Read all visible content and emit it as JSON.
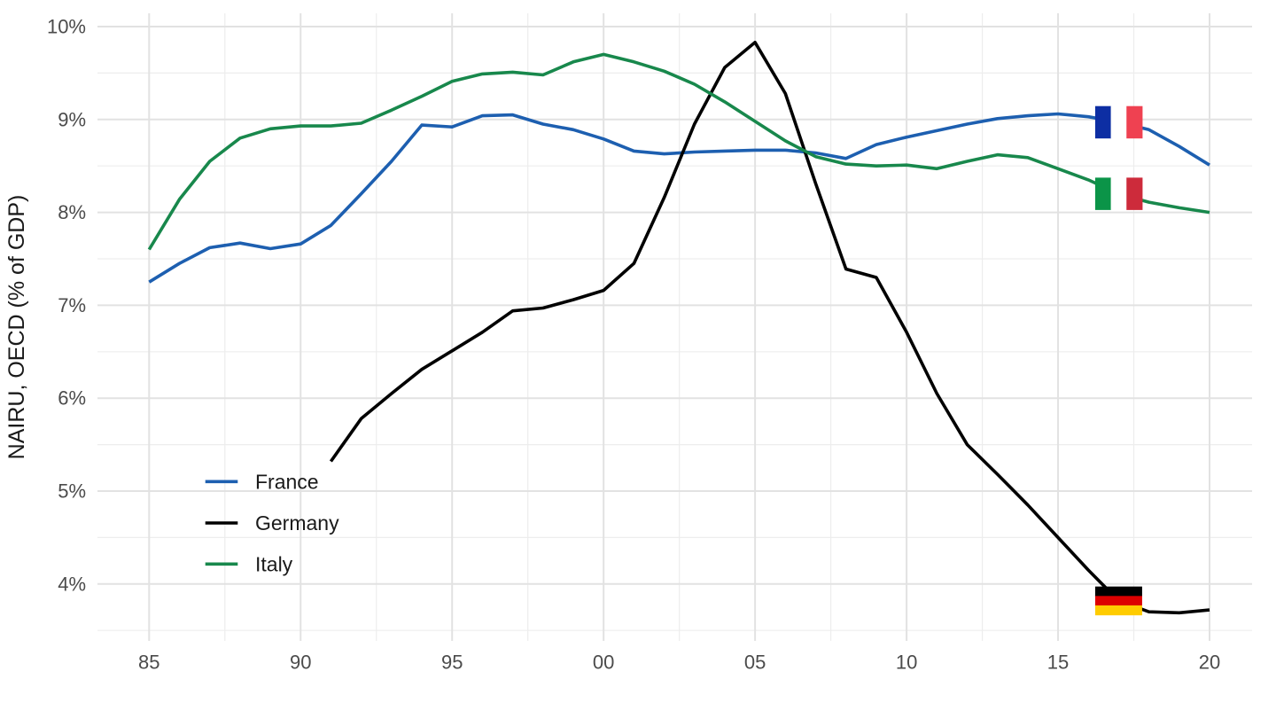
{
  "chart_data": {
    "type": "line",
    "title": "",
    "xlabel": "",
    "ylabel": "NAIRU, OECD (% of GDP)",
    "grid": true,
    "legend_position": "inside bottom-left",
    "xlim": [
      1983.3,
      2021.4
    ],
    "ylim": [
      3.39,
      10.14
    ],
    "x_ticks": {
      "values": [
        1985,
        1990,
        1995,
        2000,
        2005,
        2010,
        2015,
        2020
      ],
      "labels": [
        "85",
        "90",
        "95",
        "00",
        "05",
        "10",
        "15",
        "20"
      ]
    },
    "x_minor_ticks": [
      1987.5,
      1992.5,
      1997.5,
      2002.5,
      2007.5,
      2012.5,
      2017.5
    ],
    "y_ticks": {
      "values": [
        4,
        5,
        6,
        7,
        8,
        9,
        10
      ],
      "labels": [
        "4%",
        "5%",
        "6%",
        "7%",
        "8%",
        "9%",
        "10%"
      ]
    },
    "y_minor_ticks": [
      3.5,
      4.5,
      5.5,
      6.5,
      7.5,
      8.5,
      9.5
    ],
    "series": [
      {
        "name": "France",
        "color": "#1d5fb0",
        "start_year": 1985,
        "values": [
          7.25,
          7.45,
          7.62,
          7.67,
          7.61,
          7.66,
          7.86,
          8.2,
          8.55,
          8.94,
          8.92,
          9.04,
          9.05,
          8.95,
          8.89,
          8.79,
          8.66,
          8.63,
          8.65,
          8.66,
          8.67,
          8.67,
          8.64,
          8.58,
          8.73,
          8.81,
          8.88,
          8.95,
          9.01,
          9.04,
          9.06,
          9.03,
          8.97,
          8.89,
          8.71,
          8.51
        ]
      },
      {
        "name": "Germany",
        "color": "#000000",
        "start_year": 1991,
        "values": [
          5.32,
          5.78,
          6.05,
          6.31,
          6.51,
          6.71,
          6.94,
          6.97,
          7.06,
          7.16,
          7.45,
          8.16,
          8.95,
          9.56,
          9.83,
          9.28,
          8.31,
          7.39,
          7.3,
          6.71,
          6.05,
          5.5,
          5.18,
          4.85,
          4.5,
          4.15,
          3.82,
          3.7,
          3.69,
          3.72
        ]
      },
      {
        "name": "Italy",
        "color": "#18884c",
        "start_year": 1985,
        "values": [
          7.6,
          8.14,
          8.55,
          8.8,
          8.9,
          8.93,
          8.93,
          8.96,
          9.1,
          9.25,
          9.41,
          9.49,
          9.51,
          9.48,
          9.62,
          9.7,
          9.62,
          9.52,
          9.38,
          9.19,
          8.98,
          8.77,
          8.6,
          8.52,
          8.5,
          8.51,
          8.47,
          8.55,
          8.62,
          8.59,
          8.47,
          8.35,
          8.2,
          8.11,
          8.05,
          8.0
        ]
      }
    ],
    "flag_markers": [
      {
        "country": "France",
        "year": 2017,
        "value": 8.97,
        "orientation": "vertical",
        "colors": [
          "#0d2ea3",
          "#ffffff",
          "#ef4151"
        ]
      },
      {
        "country": "Germany",
        "year": 2017,
        "value": 3.82,
        "orientation": "horizontal",
        "colors": [
          "#000000",
          "#dd0000",
          "#ffcc00"
        ]
      },
      {
        "country": "Italy",
        "year": 2017,
        "value": 8.2,
        "orientation": "vertical",
        "colors": [
          "#0b9448",
          "#ffffff",
          "#cd2b3b"
        ]
      }
    ]
  }
}
